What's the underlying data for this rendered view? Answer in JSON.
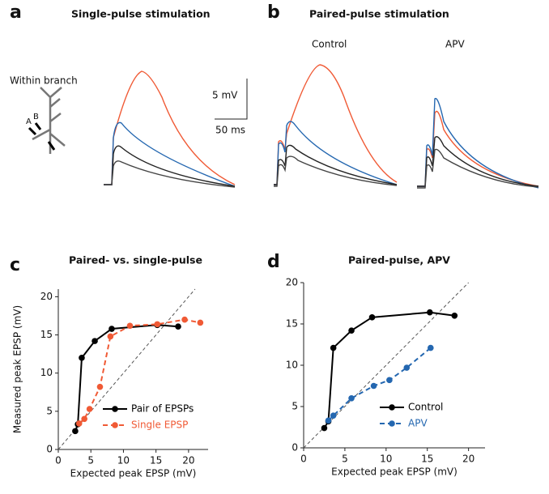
{
  "panel_a": {
    "letter": "a",
    "title": "Single-pulse stimulation",
    "label": "Within branch",
    "sites": [
      "A",
      "B"
    ],
    "scale_y": "5 mV",
    "scale_x": "50 ms"
  },
  "panel_b": {
    "letter": "b",
    "title": "Paired-pulse stimulation",
    "conditions": [
      "Control",
      "APV"
    ]
  },
  "chart_data": [
    {
      "type": "line",
      "letter": "c",
      "title": "Paired- vs. single-pulse",
      "xlabel": "Expected peak EPSP (mV)",
      "ylabel": "Measured peak EPSP (mV)",
      "xlim": [
        0,
        23
      ],
      "ylim": [
        0,
        21
      ],
      "xticks": [
        0,
        5,
        10,
        15,
        20
      ],
      "yticks": [
        0,
        5,
        10,
        15,
        20
      ],
      "identity_line": true,
      "legend": "lower right",
      "series": [
        {
          "name": "Pair of EPSPs",
          "color": "#000000",
          "dashed": false,
          "x": [
            2.6,
            3.0,
            3.6,
            5.6,
            8.2,
            15.2,
            18.4
          ],
          "values": [
            2.4,
            3.3,
            12.0,
            14.2,
            15.8,
            16.3,
            16.1
          ]
        },
        {
          "name": "Single EPSP",
          "color": "#f05a35",
          "dashed": true,
          "x": [
            3.2,
            4.0,
            4.8,
            6.4,
            8.0,
            11.0,
            15.2,
            19.4,
            21.8
          ],
          "values": [
            3.4,
            4.0,
            5.3,
            8.2,
            14.8,
            16.2,
            16.4,
            17.0,
            16.6
          ]
        }
      ]
    },
    {
      "type": "line",
      "letter": "d",
      "title": "Paired-pulse, APV",
      "xlabel": "Expected peak EPSP (mV)",
      "xlim": [
        0,
        22
      ],
      "ylim": [
        0,
        20
      ],
      "xticks": [
        0,
        5,
        10,
        15,
        20
      ],
      "yticks": [
        0,
        5,
        10,
        15,
        20
      ],
      "identity_line": true,
      "legend": "lower right",
      "series": [
        {
          "name": "Control",
          "color": "#000000",
          "dashed": false,
          "x": [
            2.5,
            3.0,
            3.6,
            5.8,
            8.3,
            15.3,
            18.3
          ],
          "values": [
            2.4,
            3.2,
            12.1,
            14.2,
            15.8,
            16.4,
            16.0
          ]
        },
        {
          "name": "APV",
          "color": "#2467b0",
          "dashed": true,
          "x": [
            3.0,
            3.6,
            5.8,
            8.5,
            10.4,
            12.5,
            15.4
          ],
          "values": [
            3.3,
            3.9,
            6.0,
            7.5,
            8.2,
            9.7,
            12.1
          ]
        }
      ]
    }
  ]
}
